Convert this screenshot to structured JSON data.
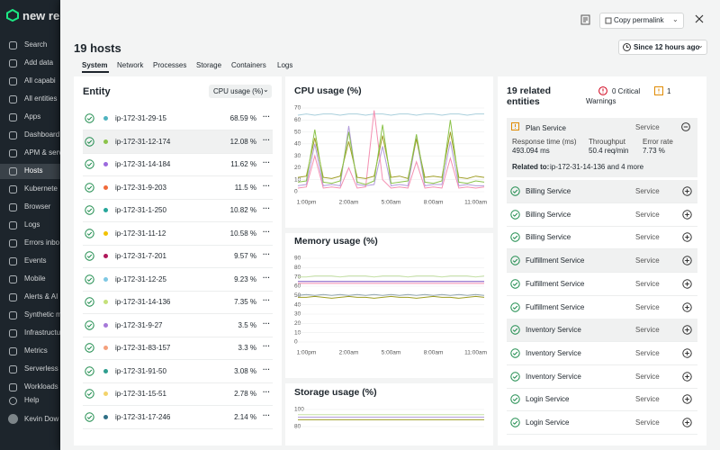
{
  "sidebar": {
    "logo": "new re",
    "items": [
      "Search",
      "Add data",
      "All capabi",
      "All entities",
      "Apps",
      "Dashboard",
      "APM & serv",
      "Hosts",
      "Kubernete",
      "Browser",
      "Logs",
      "Errors inbo",
      "Events",
      "Mobile",
      "Alerts & AI",
      "Synthetic m",
      "Infrastructu",
      "Metrics",
      "Serverless",
      "Workloads"
    ],
    "help": "Help",
    "user": "Kevin Dow"
  },
  "header": {
    "permalink": "Copy permalink",
    "title": "19 hosts",
    "time": "Since 12 hours ago",
    "tabs": [
      "System",
      "Network",
      "Processes",
      "Storage",
      "Containers",
      "Logs"
    ]
  },
  "entity": {
    "heading": "Entity",
    "metric": "CPU usage (%)",
    "rows": [
      {
        "name": "ip-172-31-29-15",
        "color": "#4fb3bf",
        "value": "68.59 %"
      },
      {
        "name": "ip-172-31-12-174",
        "color": "#8bc34a",
        "value": "12.08 %"
      },
      {
        "name": "ip-172-31-14-184",
        "color": "#9c6ade",
        "value": "11.62 %"
      },
      {
        "name": "ip-172-31-9-203",
        "color": "#f06a3a",
        "value": "11.5 %"
      },
      {
        "name": "ip-172-31-1-250",
        "color": "#26a69a",
        "value": "10.82 %"
      },
      {
        "name": "ip-172-31-11-12",
        "color": "#f2c200",
        "value": "10.58 %"
      },
      {
        "name": "ip-172-31-7-201",
        "color": "#b0185a",
        "value": "9.57 %"
      },
      {
        "name": "ip-172-31-12-25",
        "color": "#7ec8e3",
        "value": "9.23 %"
      },
      {
        "name": "ip-172-31-14-136",
        "color": "#c5e17a",
        "value": "7.35 %"
      },
      {
        "name": "ip-172-31-9-27",
        "color": "#a678d8",
        "value": "3.5 %"
      },
      {
        "name": "ip-172-31-83-157",
        "color": "#f4a07c",
        "value": "3.3 %"
      },
      {
        "name": "ip-172-31-91-50",
        "color": "#2e9e8f",
        "value": "3.08 %"
      },
      {
        "name": "ip-172-31-15-51",
        "color": "#f3d36b",
        "value": "2.78 %"
      },
      {
        "name": "ip-172-31-17-246",
        "color": "#2f6f86",
        "value": "2.14 %"
      }
    ]
  },
  "chart_data": [
    {
      "type": "line",
      "title": "CPU usage (%)",
      "categories": [
        null,
        "1:00pm",
        null,
        null,
        null,
        null,
        "2:00am",
        null,
        null,
        null,
        null,
        "5:00am",
        null,
        null,
        null,
        null,
        "8:00am",
        null,
        null,
        null,
        null,
        "11:00am",
        null
      ],
      "ylim": [
        0,
        70
      ],
      "yticks": [
        0,
        10,
        20,
        30,
        40,
        50,
        60,
        70
      ],
      "grid": true,
      "series": [
        {
          "color": "#a9cfdc",
          "values": [
            64,
            65,
            64,
            65,
            65,
            64,
            65,
            65,
            64,
            65,
            65,
            64,
            65,
            65,
            64,
            65,
            65,
            64,
            65,
            65,
            64,
            65,
            65
          ]
        },
        {
          "color": "#b39ddb",
          "values": [
            5,
            6,
            40,
            5,
            6,
            5,
            55,
            6,
            5,
            6,
            38,
            5,
            6,
            5,
            45,
            5,
            6,
            6,
            42,
            5,
            6,
            5,
            5
          ]
        },
        {
          "color": "#f48fb1",
          "values": [
            3,
            4,
            30,
            3,
            4,
            3,
            20,
            3,
            4,
            68,
            10,
            3,
            4,
            3,
            25,
            3,
            4,
            3,
            28,
            3,
            4,
            3,
            4
          ]
        },
        {
          "color": "#9e9d24",
          "values": [
            12,
            13,
            45,
            12,
            11,
            13,
            42,
            12,
            11,
            13,
            47,
            12,
            13,
            11,
            44,
            12,
            13,
            12,
            50,
            12,
            11,
            13,
            12
          ]
        },
        {
          "color": "#8bc34a",
          "values": [
            8,
            9,
            52,
            8,
            7,
            9,
            50,
            8,
            6,
            9,
            56,
            7,
            8,
            9,
            48,
            8,
            7,
            9,
            60,
            8,
            7,
            9,
            8
          ]
        }
      ]
    },
    {
      "type": "line",
      "title": "Memory usage (%)",
      "categories": [
        null,
        "1:00pm",
        null,
        null,
        null,
        null,
        "2:00am",
        null,
        null,
        null,
        null,
        "5:00am",
        null,
        null,
        null,
        null,
        "8:00am",
        null,
        null,
        null,
        null,
        "11:00am",
        null
      ],
      "ylim": [
        0,
        90
      ],
      "yticks": [
        0,
        10,
        20,
        30,
        40,
        50,
        60,
        70,
        80,
        90
      ],
      "grid": true,
      "series": [
        {
          "color": "#c5e1a5",
          "values": [
            70,
            70,
            71,
            71,
            71,
            70,
            71,
            71,
            71,
            70,
            71,
            71,
            71,
            70,
            71,
            71,
            71,
            70,
            71,
            71,
            71,
            70,
            71
          ]
        },
        {
          "color": "#7e57c2",
          "values": [
            65,
            65,
            65,
            65,
            65,
            65,
            65,
            65,
            65,
            65,
            65,
            65,
            65,
            65,
            65,
            65,
            65,
            65,
            65,
            65,
            65,
            65,
            65
          ]
        },
        {
          "color": "#f48fb1",
          "values": [
            63,
            63,
            63,
            63,
            63,
            63,
            63,
            63,
            63,
            63,
            63,
            63,
            63,
            63,
            63,
            63,
            63,
            63,
            63,
            63,
            63,
            63,
            63
          ]
        },
        {
          "color": "#90a4ae",
          "values": [
            50,
            51,
            50,
            51,
            50,
            51,
            50,
            51,
            50,
            51,
            50,
            51,
            50,
            51,
            50,
            51,
            50,
            51,
            50,
            51,
            50,
            51,
            50
          ]
        },
        {
          "color": "#9e9d24",
          "values": [
            48,
            48,
            49,
            48,
            47,
            48,
            49,
            48,
            48,
            47,
            48,
            49,
            48,
            48,
            47,
            48,
            49,
            48,
            48,
            47,
            48,
            49,
            48
          ]
        }
      ]
    },
    {
      "type": "line",
      "title": "Storage usage (%)",
      "ylim": [
        80,
        100
      ],
      "yticks": [
        80,
        100
      ],
      "grid": true,
      "series": [
        {
          "color": "#c5e1a5",
          "values": [
            94,
            94,
            94,
            94,
            94,
            94,
            94,
            94,
            94,
            94,
            94,
            94,
            94,
            94,
            94,
            94,
            94,
            94,
            94,
            94,
            94,
            94,
            94
          ]
        },
        {
          "color": "#b39ddb",
          "values": [
            91,
            91,
            91,
            91,
            91,
            91,
            91,
            91,
            91,
            91,
            91,
            91,
            91,
            91,
            91,
            91,
            91,
            91,
            91,
            91,
            91,
            91,
            91
          ]
        },
        {
          "color": "#9e9d24",
          "values": [
            88,
            88,
            88,
            88,
            88,
            88,
            88,
            88,
            88,
            88,
            88,
            88,
            88,
            88,
            88,
            88,
            88,
            88,
            88,
            88,
            88,
            88,
            88
          ]
        }
      ]
    }
  ],
  "related": {
    "title": "19 related entities",
    "critical": "0 Critical",
    "warnings_count": "1",
    "warnings": "Warnings",
    "featured": {
      "name": "Plan Service",
      "kind": "Service",
      "metrics": [
        {
          "label": "Response time (ms)",
          "value": "493.094 ms"
        },
        {
          "label": "Throughput",
          "value": "50.4 req/min"
        },
        {
          "label": "Error rate",
          "value": "7.73 %"
        }
      ],
      "related_label": "Related to:",
      "related_value": "ip-172-31-14-136 and 4 more"
    },
    "items": [
      {
        "name": "Billing Service",
        "kind": "Service"
      },
      {
        "name": "Billing Service",
        "kind": "Service"
      },
      {
        "name": "Billing Service",
        "kind": "Service"
      },
      {
        "name": "Fulfillment Service",
        "kind": "Service"
      },
      {
        "name": "Fulfillment Service",
        "kind": "Service"
      },
      {
        "name": "Fulfillment Service",
        "kind": "Service"
      },
      {
        "name": "Inventory Service",
        "kind": "Service"
      },
      {
        "name": "Inventory Service",
        "kind": "Service"
      },
      {
        "name": "Inventory Service",
        "kind": "Service"
      },
      {
        "name": "Login Service",
        "kind": "Service"
      },
      {
        "name": "Login Service",
        "kind": "Service"
      }
    ]
  }
}
